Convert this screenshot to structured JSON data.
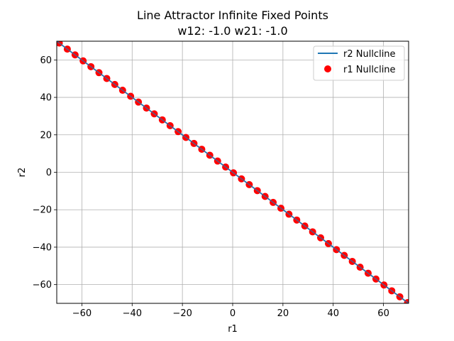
{
  "chart_data": {
    "type": "scatter",
    "title": "Line Attractor Infinite Fixed Points",
    "subtitle": "w12: -1.0 w21: -1.0",
    "xlabel": "r1",
    "ylabel": "r2",
    "xlim": [
      -70,
      70
    ],
    "ylim": [
      -70,
      70
    ],
    "xticks": [
      -60,
      -40,
      -20,
      0,
      20,
      40,
      60
    ],
    "yticks": [
      -60,
      -40,
      -20,
      0,
      20,
      40,
      60
    ],
    "grid": true,
    "legend_position": "top-right",
    "colors": {
      "line": "#1f77b4",
      "points": "#ff0000",
      "grid": "#b0b0b0"
    },
    "series": [
      {
        "name": "r2 Nullcline",
        "kind": "line",
        "x": [
          -70,
          70
        ],
        "y": [
          70,
          -70
        ]
      },
      {
        "name": "r1 Nullcline",
        "kind": "scatter",
        "x": [
          -69.0,
          -65.8,
          -62.7,
          -59.5,
          -56.4,
          -53.2,
          -50.1,
          -46.9,
          -43.8,
          -40.6,
          -37.5,
          -34.3,
          -31.2,
          -28.0,
          -24.9,
          -21.7,
          -18.6,
          -15.4,
          -12.3,
          -9.1,
          -6.0,
          -2.8,
          0.3,
          3.5,
          6.6,
          9.8,
          12.9,
          16.1,
          19.2,
          22.4,
          25.5,
          28.7,
          31.8,
          35.0,
          38.1,
          41.3,
          44.4,
          47.6,
          50.7,
          53.9,
          57.0,
          60.2,
          63.3,
          66.5,
          69.6
        ],
        "y": [
          69.0,
          65.8,
          62.7,
          59.5,
          56.4,
          53.2,
          50.1,
          46.9,
          43.8,
          40.6,
          37.5,
          34.3,
          31.2,
          28.0,
          24.9,
          21.7,
          18.6,
          15.4,
          12.3,
          9.1,
          6.0,
          2.8,
          -0.3,
          -3.5,
          -6.6,
          -9.8,
          -12.9,
          -16.1,
          -19.2,
          -22.4,
          -25.5,
          -28.7,
          -31.8,
          -35.0,
          -38.1,
          -41.3,
          -44.4,
          -47.6,
          -50.7,
          -53.9,
          -57.0,
          -60.2,
          -63.3,
          -66.5,
          -69.6
        ]
      }
    ]
  }
}
